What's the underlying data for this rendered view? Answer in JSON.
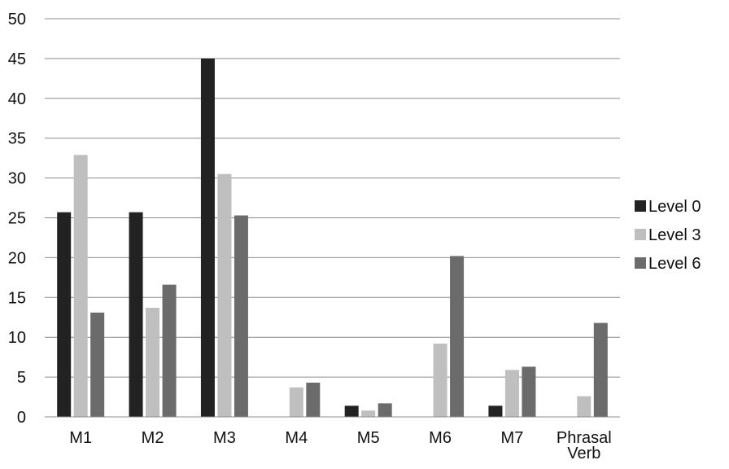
{
  "chart_data": {
    "type": "bar",
    "categories": [
      [
        "M1"
      ],
      [
        "M2"
      ],
      [
        "M3"
      ],
      [
        "M4"
      ],
      [
        "M5"
      ],
      [
        "M6"
      ],
      [
        "M7"
      ],
      [
        "Phrasal",
        "Verb"
      ]
    ],
    "series": [
      {
        "name": "Level 0",
        "color": "#222222",
        "values": [
          25.7,
          25.7,
          45,
          0,
          1.4,
          0,
          1.4,
          0
        ]
      },
      {
        "name": "Level 3",
        "color": "#bfbfbf",
        "values": [
          32.9,
          13.7,
          30.5,
          3.7,
          0.8,
          9.2,
          5.9,
          2.6
        ]
      },
      {
        "name": "Level 6",
        "color": "#6b6b6b",
        "values": [
          13.1,
          16.6,
          25.3,
          4.3,
          1.7,
          20.2,
          6.3,
          11.8
        ]
      }
    ],
    "ylim": [
      0,
      50
    ],
    "yticks": [
      "0",
      "5",
      "10",
      "15",
      "20",
      "25",
      "30",
      "35",
      "40",
      "45",
      "50"
    ],
    "grid": true,
    "legend": "right",
    "title": "",
    "xlabel": "",
    "ylabel": ""
  }
}
